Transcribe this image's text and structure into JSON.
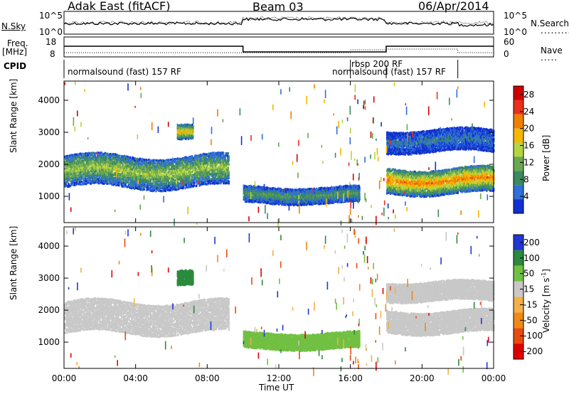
{
  "header": {
    "station": "Adak East (fitACF)",
    "beam": "Beam 03",
    "date": "06/Apr/2014"
  },
  "panel_labels": {
    "nsky": "N.Sky",
    "nsearch": "N.Search",
    "freq": "Freq.",
    "freq_unit": "[MHz]",
    "nave": "Nave",
    "cpid": "CPID"
  },
  "small_ticks": {
    "noise_left_top": "10^5",
    "noise_left_bottom": "10^0",
    "noise_right_top": "10^5",
    "noise_right_bottom": "10^0",
    "freq_left_top": "18",
    "freq_left_bottom": "8",
    "nave_right_top": "60",
    "nave_right_bottom": "0"
  },
  "cpid_segments": [
    {
      "label": "normalsound (fast) 157 RF",
      "start_hour": 0.0
    },
    {
      "label": "rbsp 200 RF",
      "start_hour": 16.0
    },
    {
      "label": "normalsound (fast) 157 RF",
      "start_hour": 18.0
    }
  ],
  "colors": {
    "power": [
      "#1030d0",
      "#2f6fd8",
      "#3c8a5f",
      "#6aa84f",
      "#b5d540",
      "#f5b800",
      "#f07f00",
      "#e8301c",
      "#d00000"
    ],
    "velocity": [
      "#2236d6",
      "#2b8a3c",
      "#72c043",
      "#c8c8c8",
      "#f3b04a",
      "#ef8a16",
      "#e84c0c",
      "#e00000"
    ]
  },
  "chart_data": [
    {
      "type": "heatmap",
      "title": "",
      "xlabel": "Time UT",
      "ylabel": "Slant Range [km]",
      "x_ticks": [
        "00:00",
        "04:00",
        "08:00",
        "12:00",
        "16:00",
        "20:00",
        "00:00"
      ],
      "y_ticks": [
        1000,
        2000,
        3000,
        4000
      ],
      "xlim_hours": [
        0,
        24
      ],
      "ylim_km": [
        180,
        4600
      ],
      "colorbar": {
        "label": "Power [dB]",
        "ticks": [
          4,
          8,
          12,
          16,
          20,
          24,
          28
        ],
        "range": [
          0,
          30
        ]
      },
      "echo_regions": [
        {
          "t": [
            0.0,
            9.2
          ],
          "range_km": [
            1300,
            2300
          ],
          "power_db": 14
        },
        {
          "t": [
            6.3,
            7.2
          ],
          "range_km": [
            2750,
            3200
          ],
          "power_db": 20
        },
        {
          "t": [
            10.0,
            16.5
          ],
          "range_km": [
            800,
            1300
          ],
          "power_db": 10
        },
        {
          "t": [
            18.0,
            24.0
          ],
          "range_km": [
            1100,
            1900
          ],
          "power_db": 22
        },
        {
          "t": [
            18.0,
            24.0
          ],
          "range_km": [
            2400,
            3100
          ],
          "power_db": 6
        }
      ]
    },
    {
      "type": "heatmap",
      "title": "",
      "xlabel": "Time UT",
      "ylabel": "Slant Range [km]",
      "x_ticks": [
        "00:00",
        "04:00",
        "08:00",
        "12:00",
        "16:00",
        "20:00",
        "00:00"
      ],
      "y_ticks": [
        1000,
        2000,
        3000,
        4000
      ],
      "xlim_hours": [
        0,
        24
      ],
      "ylim_km": [
        180,
        4600
      ],
      "colorbar": {
        "label": "Velocity [m s^-1]",
        "ticks": [
          200,
          100,
          50,
          15,
          -15,
          -50,
          -100,
          -200
        ],
        "range": [
          -250,
          250
        ]
      },
      "echo_regions": [
        {
          "t": [
            0.0,
            9.2
          ],
          "range_km": [
            1300,
            2300
          ],
          "velocity": 0
        },
        {
          "t": [
            6.3,
            7.2
          ],
          "range_km": [
            2750,
            3200
          ],
          "velocity": 60
        },
        {
          "t": [
            10.0,
            16.5
          ],
          "range_km": [
            800,
            1300
          ],
          "velocity": 40
        },
        {
          "t": [
            18.0,
            24.0
          ],
          "range_km": [
            1300,
            2000
          ],
          "velocity": 0
        },
        {
          "t": [
            18.0,
            24.0
          ],
          "range_km": [
            2300,
            2900
          ],
          "velocity": 0
        }
      ]
    }
  ],
  "legend_units": {
    "power": "Power [dB]",
    "velocity_main": "Velocity [m s",
    "velocity_sup": "-1",
    "velocity_close": "]"
  }
}
